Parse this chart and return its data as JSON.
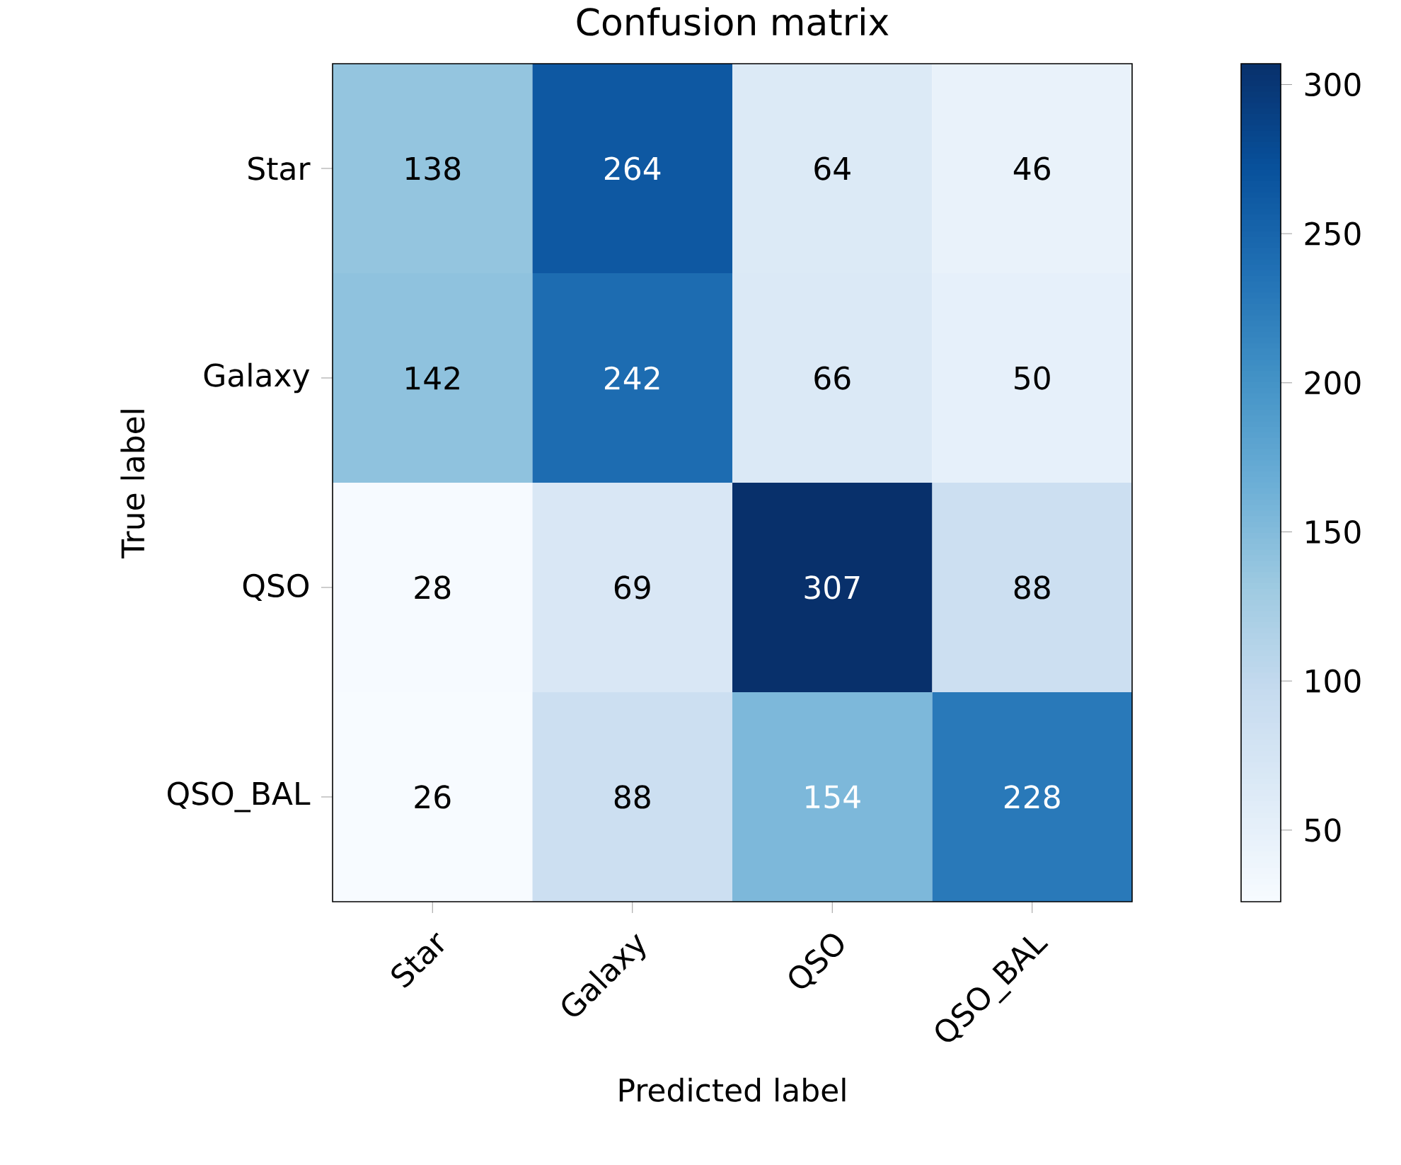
{
  "chart_data": {
    "type": "heatmap",
    "title": "Confusion matrix",
    "xlabel": "Predicted label",
    "ylabel": "True label",
    "categories": [
      "Star",
      "Galaxy",
      "QSO",
      "QSO_BAL"
    ],
    "y_categories": [
      "Star",
      "Galaxy",
      "QSO",
      "QSO_BAL"
    ],
    "cells": [
      [
        138,
        264,
        64,
        46
      ],
      [
        142,
        242,
        66,
        50
      ],
      [
        28,
        69,
        307,
        88
      ],
      [
        26,
        88,
        154,
        228
      ]
    ],
    "clim": [
      26,
      307
    ],
    "cticks": [
      50,
      100,
      150,
      200,
      250,
      300
    ],
    "data_labels": true
  }
}
